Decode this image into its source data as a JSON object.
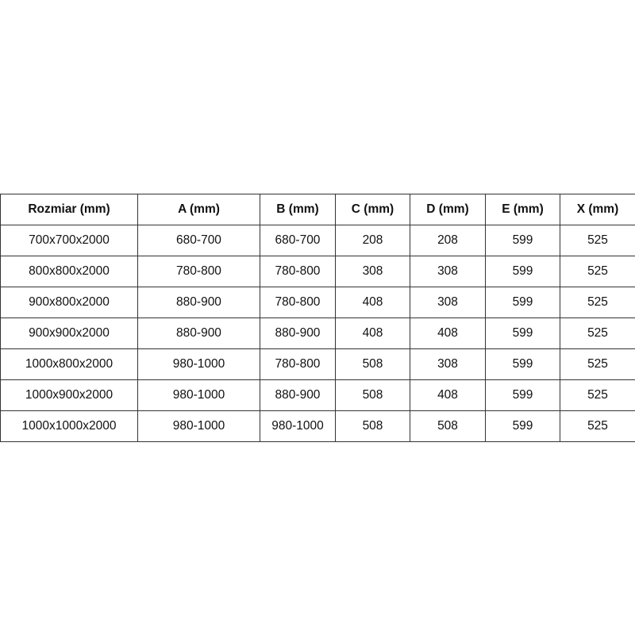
{
  "table": {
    "headers": [
      "Rozmiar (mm)",
      "A (mm)",
      "B (mm)",
      "C (mm)",
      "D (mm)",
      "E (mm)",
      "X (mm)"
    ],
    "rows": [
      [
        "700x700x2000",
        "680-700",
        "680-700",
        "208",
        "208",
        "599",
        "525"
      ],
      [
        "800x800x2000",
        "780-800",
        "780-800",
        "308",
        "308",
        "599",
        "525"
      ],
      [
        "900x800x2000",
        "880-900",
        "780-800",
        "408",
        "308",
        "599",
        "525"
      ],
      [
        "900x900x2000",
        "880-900",
        "880-900",
        "408",
        "408",
        "599",
        "525"
      ],
      [
        "1000x800x2000",
        "980-1000",
        "780-800",
        "508",
        "308",
        "599",
        "525"
      ],
      [
        "1000x900x2000",
        "980-1000",
        "880-900",
        "508",
        "408",
        "599",
        "525"
      ],
      [
        "1000x1000x2000",
        "980-1000",
        "980-1000",
        "508",
        "508",
        "599",
        "525"
      ]
    ]
  }
}
